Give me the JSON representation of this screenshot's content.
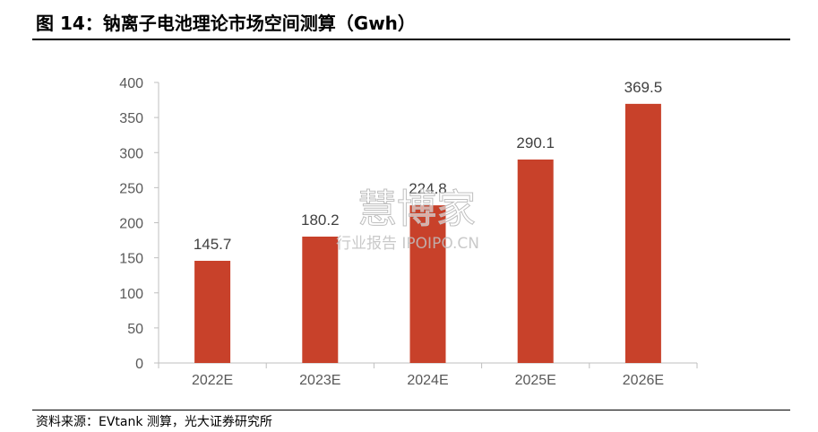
{
  "figure": {
    "title": "图 14：钠离子电池理论市场空间测算（Gwh）",
    "source": "资料来源：EVtank 测算，光大证券研究所"
  },
  "watermark": {
    "main": "慧博家",
    "sub": "行业报告 IPOIPO.CN"
  },
  "colors": {
    "bar": "#C8412A",
    "axis": "#BFBFBF",
    "tick_text": "#595959"
  },
  "chart_data": {
    "type": "bar",
    "title": "图 14：钠离子电池理论市场空间测算（Gwh）",
    "categories": [
      "2022E",
      "2023E",
      "2024E",
      "2025E",
      "2026E"
    ],
    "values": [
      145.7,
      180.2,
      224.8,
      290.1,
      369.5
    ],
    "value_labels": [
      "145.7",
      "180.2",
      "224.8",
      "290.1",
      "369.5"
    ],
    "ylim": [
      0,
      400
    ],
    "yticks": [
      0,
      50,
      100,
      150,
      200,
      250,
      300,
      350,
      400
    ],
    "xlabel": "",
    "ylabel": "",
    "grid": false,
    "legend": "none"
  }
}
